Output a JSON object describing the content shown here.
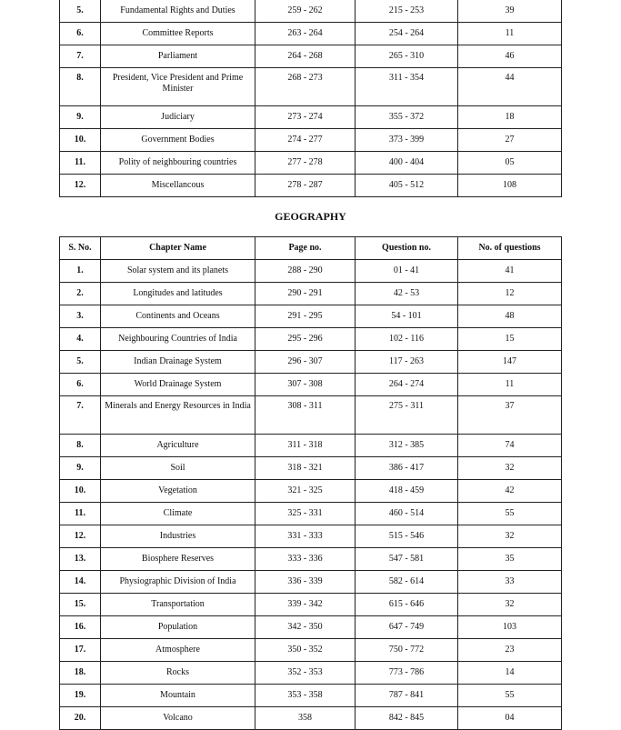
{
  "polity_table": {
    "rows": [
      {
        "sno": "5.",
        "chapter": "Fundamental Rights and Duties",
        "page": "259 - 262",
        "question": "215 - 253",
        "count": "39"
      },
      {
        "sno": "6.",
        "chapter": "Committee Reports",
        "page": "263 - 264",
        "question": "254 - 264",
        "count": "11"
      },
      {
        "sno": "7.",
        "chapter": "Parliament",
        "page": "264 - 268",
        "question": "265 - 310",
        "count": "46"
      },
      {
        "sno": "8.",
        "chapter": "President, Vice President and Prime Minister",
        "page": "268 - 273",
        "question": "311 - 354",
        "count": "44",
        "tall": true
      },
      {
        "sno": "9.",
        "chapter": "Judiciary",
        "page": "273 - 274",
        "question": "355 - 372",
        "count": "18"
      },
      {
        "sno": "10.",
        "chapter": "Government Bodies",
        "page": "274 - 277",
        "question": "373 - 399",
        "count": "27"
      },
      {
        "sno": "11.",
        "chapter": "Polity of neighbouring countries",
        "page": "277 - 278",
        "question": "400 - 404",
        "count": "05"
      },
      {
        "sno": "12.",
        "chapter": "Miscellancous",
        "page": "278 - 287",
        "question": "405 - 512",
        "count": "108"
      }
    ]
  },
  "geography": {
    "title": "GEOGRAPHY",
    "headers": [
      "S. No.",
      "Chapter  Name",
      "Page no.",
      "Question no.",
      "No. of questions"
    ],
    "rows": [
      {
        "sno": "1.",
        "chapter": "Solar system and its planets",
        "page": "288 - 290",
        "question": "01 - 41",
        "count": "41"
      },
      {
        "sno": "2.",
        "chapter": "Longitudes and latitudes",
        "page": "290 - 291",
        "question": "42 - 53",
        "count": "12"
      },
      {
        "sno": "3.",
        "chapter": "Continents and Oceans",
        "page": "291 - 295",
        "question": "54 - 101",
        "count": "48"
      },
      {
        "sno": "4.",
        "chapter": "Neighbouring Countries of India",
        "page": "295 - 296",
        "question": "102 - 116",
        "count": "15"
      },
      {
        "sno": "5.",
        "chapter": "Indian Drainage System",
        "page": "296 - 307",
        "question": "117 - 263",
        "count": "147"
      },
      {
        "sno": "6.",
        "chapter": "World Drainage System",
        "page": "307 - 308",
        "question": "264 - 274",
        "count": "11"
      },
      {
        "sno": "7.",
        "chapter": "Minerals and Energy Resources in India",
        "page": "308 - 311",
        "question": "275 - 311",
        "count": "37",
        "tall": true
      },
      {
        "sno": "8.",
        "chapter": "Agriculture",
        "page": "311 - 318",
        "question": "312 - 385",
        "count": "74"
      },
      {
        "sno": "9.",
        "chapter": "Soil",
        "page": "318 - 321",
        "question": "386 - 417",
        "count": "32"
      },
      {
        "sno": "10.",
        "chapter": "Vegetation",
        "page": "321 - 325",
        "question": "418 - 459",
        "count": "42"
      },
      {
        "sno": "11.",
        "chapter": "Climate",
        "page": "325 - 331",
        "question": "460 - 514",
        "count": "55"
      },
      {
        "sno": "12.",
        "chapter": "Industries",
        "page": "331 - 333",
        "question": "515 - 546",
        "count": "32"
      },
      {
        "sno": "13.",
        "chapter": "Biosphere Reserves",
        "page": "333 - 336",
        "question": "547 - 581",
        "count": "35"
      },
      {
        "sno": "14.",
        "chapter": "Physiographic Division of India",
        "page": "336 - 339",
        "question": "582 - 614",
        "count": "33"
      },
      {
        "sno": "15.",
        "chapter": "Transportation",
        "page": "339 - 342",
        "question": "615 - 646",
        "count": "32"
      },
      {
        "sno": "16.",
        "chapter": "Population",
        "page": "342 - 350",
        "question": "647 - 749",
        "count": "103"
      },
      {
        "sno": "17.",
        "chapter": "Atmosphere",
        "page": "350 - 352",
        "question": "750 - 772",
        "count": "23"
      },
      {
        "sno": "18.",
        "chapter": "Rocks",
        "page": "352 - 353",
        "question": "773 - 786",
        "count": "14"
      },
      {
        "sno": "19.",
        "chapter": "Mountain",
        "page": "353 - 358",
        "question": "787 - 841",
        "count": "55"
      },
      {
        "sno": "20.",
        "chapter": "Volcano",
        "page": "358",
        "question": "842 - 845",
        "count": "04"
      }
    ]
  }
}
